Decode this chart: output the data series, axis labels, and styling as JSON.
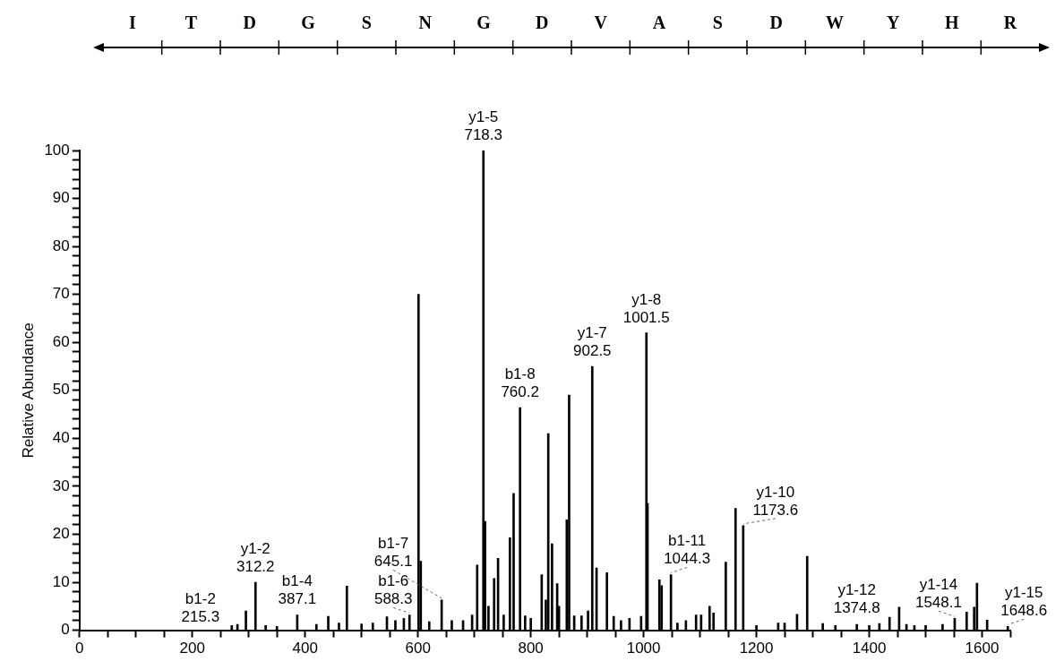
{
  "chart_data": {
    "type": "bar",
    "ylabel": "Relative Abundance",
    "color": "#000000",
    "x": [
      270,
      280,
      295,
      312,
      330,
      350,
      386,
      420,
      441,
      460,
      474,
      500,
      520,
      545,
      560,
      575,
      585,
      601,
      605,
      620,
      642,
      660,
      680,
      696,
      705,
      716,
      719,
      725,
      735,
      742,
      752,
      763,
      769.6,
      781,
      790,
      800,
      819.4,
      826.7,
      831,
      837.7,
      846.8,
      850,
      863.8,
      868,
      877,
      890,
      901.5,
      909,
      916.6,
      935,
      947,
      960,
      975,
      995.6,
      1005,
      1007,
      1028,
      1032,
      1048.5,
      1060,
      1075,
      1093,
      1102,
      1117,
      1124,
      1145.7,
      1163,
      1176.6,
      1200,
      1238.6,
      1250,
      1272,
      1290,
      1317.6,
      1340,
      1378,
      1400,
      1418,
      1436,
      1453,
      1466,
      1480,
      1500,
      1530,
      1551.5,
      1572.7,
      1586,
      1591,
      1609,
      1645.6
    ],
    "values": [
      1,
      1.2,
      4,
      10,
      1,
      0.8,
      3.2,
      1.2,
      2.9,
      1.5,
      9.2,
      1.3,
      1.5,
      2.8,
      2,
      2.5,
      3.2,
      70,
      14.4,
      1.8,
      6.3,
      2,
      2,
      3.2,
      13.6,
      100,
      22.7,
      5,
      10.8,
      15,
      3.2,
      19.3,
      28.5,
      46.4,
      3,
      2.5,
      11.6,
      6.3,
      41,
      18,
      9.7,
      5,
      23,
      49,
      3,
      3,
      4,
      55,
      13,
      12,
      2.9,
      2,
      2.5,
      2.9,
      62,
      26.4,
      10.5,
      9.3,
      11.6,
      1.5,
      2,
      3.2,
      3.2,
      5,
      3.6,
      14.2,
      25.4,
      21.8,
      1,
      1.5,
      1.5,
      3.3,
      15.4,
      1.4,
      1,
      1.2,
      1,
      1.4,
      2.7,
      4.8,
      1.2,
      1,
      1,
      1.2,
      2.5,
      3.8,
      4.8,
      9.8,
      2.1,
      0.8
    ],
    "xlim": [
      0,
      1650
    ],
    "xticks": [
      0,
      {
        "value": 50,
        "label": null
      },
      {
        "value": 100,
        "label": null
      },
      {
        "value": 150,
        "label": null
      },
      200,
      {
        "value": 250,
        "label": null
      },
      {
        "value": 300,
        "label": null
      },
      {
        "value": 350,
        "label": null
      },
      400,
      {
        "value": 450,
        "label": null
      },
      {
        "value": 500,
        "label": null
      },
      {
        "value": 550,
        "label": null
      },
      600,
      {
        "value": 650,
        "label": null
      },
      {
        "value": 700,
        "label": null
      },
      {
        "value": 750,
        "label": null
      },
      800,
      {
        "value": 850,
        "label": null
      },
      {
        "value": 900,
        "label": null
      },
      {
        "value": 950,
        "label": null
      },
      1000,
      {
        "value": 1050,
        "label": null
      },
      {
        "value": 1100,
        "label": null
      },
      {
        "value": 1150,
        "label": null
      },
      1200,
      {
        "value": 1250,
        "label": null
      },
      {
        "value": 1300,
        "label": null
      },
      {
        "value": 1350,
        "label": null
      },
      1400,
      {
        "value": 1450,
        "label": null
      },
      {
        "value": 1500,
        "label": null
      },
      {
        "value": 1550,
        "label": null
      },
      1600,
      {
        "value": 1650,
        "label": null
      }
    ],
    "ylim": [
      0,
      100
    ],
    "yticks": [
      0,
      {
        "value": 2,
        "label": null
      },
      {
        "value": 4,
        "label": null
      },
      {
        "value": 6,
        "label": null
      },
      {
        "value": 8,
        "label": null
      },
      10,
      {
        "value": 12,
        "label": null
      },
      {
        "value": 14,
        "label": null
      },
      {
        "value": 16,
        "label": null
      },
      {
        "value": 18,
        "label": null
      },
      20,
      {
        "value": 22,
        "label": null
      },
      {
        "value": 24,
        "label": null
      },
      {
        "value": 26,
        "label": null
      },
      {
        "value": 28,
        "label": null
      },
      30,
      {
        "value": 32,
        "label": null
      },
      {
        "value": 34,
        "label": null
      },
      {
        "value": 36,
        "label": null
      },
      {
        "value": 38,
        "label": null
      },
      40,
      {
        "value": 42,
        "label": null
      },
      {
        "value": 44,
        "label": null
      },
      {
        "value": 46,
        "label": null
      },
      {
        "value": 48,
        "label": null
      },
      50,
      {
        "value": 52,
        "label": null
      },
      {
        "value": 54,
        "label": null
      },
      {
        "value": 56,
        "label": null
      },
      {
        "value": 58,
        "label": null
      },
      60,
      {
        "value": 62,
        "label": null
      },
      {
        "value": 64,
        "label": null
      },
      {
        "value": 66,
        "label": null
      },
      {
        "value": 68,
        "label": null
      },
      70,
      {
        "value": 72,
        "label": null
      },
      {
        "value": 74,
        "label": null
      },
      {
        "value": 76,
        "label": null
      },
      {
        "value": 78,
        "label": null
      },
      80,
      {
        "value": 82,
        "label": null
      },
      {
        "value": 84,
        "label": null
      },
      {
        "value": 86,
        "label": null
      },
      {
        "value": 88,
        "label": null
      },
      90,
      {
        "value": 92,
        "label": null
      },
      {
        "value": 94,
        "label": null
      },
      {
        "value": 96,
        "label": null
      },
      {
        "value": 98,
        "label": null
      },
      100
    ],
    "grid": false,
    "legend": false,
    "annotations": [
      "I",
      "T",
      "D",
      "G",
      "S",
      "N",
      "G",
      "D",
      "V",
      "A",
      "S",
      "D",
      "W",
      "Y",
      "H",
      "R",
      {
        "text": "y1-2\n312.2",
        "x": 312,
        "y": 10
      },
      {
        "text": "b1-4\n387.1",
        "x": 386,
        "y": 3.2
      },
      {
        "text": "b1-6\n588.3",
        "x": 585,
        "y": 3.2
      },
      {
        "text": "b1-7\n645.1",
        "x": 642,
        "y": 6.3
      },
      {
        "text": "y1-5\n718.3",
        "x": 716,
        "y": 100
      },
      {
        "text": "b1-8\n760.2",
        "x": 781,
        "y": 46.4
      },
      {
        "text": "y1-7\n902.5",
        "x": 909,
        "y": 55
      },
      {
        "text": "y1-8\n1001.5",
        "x": 1005,
        "y": 62
      },
      {
        "text": "b1-11\n1044.3",
        "x": 1048.5,
        "y": 11.6
      },
      {
        "text": "y1-10\n1173.6",
        "x": 1176.6,
        "y": 21.8
      },
      {
        "text": "y1-12\n1374.8",
        "x": 1378,
        "y": 1.2
      },
      {
        "text": "y1-14\n1548.1",
        "x": 1551.5,
        "y": 2.5
      },
      {
        "text": "y1-15\n1648.6",
        "x": 1645.6,
        "y": 0.8
      },
      "b1-2\n215.3"
    ]
  }
}
